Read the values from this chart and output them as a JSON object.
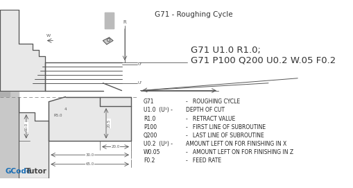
{
  "title": "G71 - Roughing Cycle",
  "bg_color": "#ffffff",
  "line_color": "#555555",
  "dash_color": "#888888",
  "dim_color": "#555555",
  "fill_light": "#e8e8e8",
  "fill_dark": "#c8c8c8",
  "gcode_line1": "G71 U1.0 R1.0;",
  "gcode_line2": "G71 P100 Q200 U0.2 W.05 F0.2",
  "legend_items": [
    [
      "G71",
      "     -   ROUGHING CYCLE"
    ],
    [
      "U1.0  (U¹) -",
      "  DEPTH OF CUT"
    ],
    [
      "R1.0",
      "          -   RETRACT VALUE"
    ],
    [
      "P100",
      "          -   FIRST LINE OF SUBROUTINE"
    ],
    [
      "Q200",
      "          -   LAST LINE OF SUBROUTINE"
    ],
    [
      "U0.2  (U²) -",
      "  AMOUNT LEFT ON FOR FINISHING IN X"
    ],
    [
      "W0.05",
      "         -   AMOUNT LEFT ON FOR FINISHING IN Z"
    ],
    [
      "F0.2",
      "          -   FEED RATE"
    ]
  ],
  "brand_g": "GCode",
  "brand_t": "Tutor",
  "brand_color_g": "#1a6eb5",
  "brand_color_t": "#444444"
}
